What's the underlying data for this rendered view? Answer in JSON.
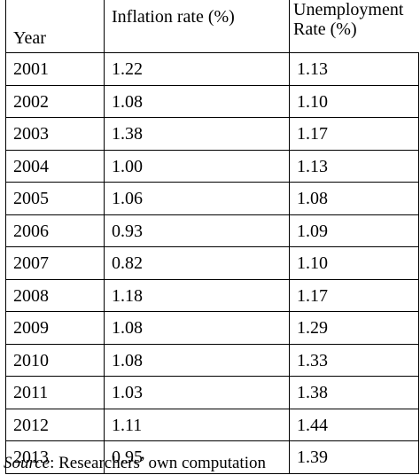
{
  "table": {
    "headers": {
      "year": "Year",
      "inflation": "Inflation rate (%)",
      "unemployment_line1": "Unemployment",
      "unemployment_line2": "Rate (%)"
    },
    "rows": [
      {
        "year": "2001",
        "inflation": "1.22",
        "unemployment": "1.13"
      },
      {
        "year": "2002",
        "inflation": "1.08",
        "unemployment": "1.10"
      },
      {
        "year": "2003",
        "inflation": "1.38",
        "unemployment": "1.17"
      },
      {
        "year": "2004",
        "inflation": "1.00",
        "unemployment": "1.13"
      },
      {
        "year": "2005",
        "inflation": "1.06",
        "unemployment": "1.08"
      },
      {
        "year": "2006",
        "inflation": "0.93",
        "unemployment": "1.09"
      },
      {
        "year": "2007",
        "inflation": "0.82",
        "unemployment": "1.10"
      },
      {
        "year": "2008",
        "inflation": "1.18",
        "unemployment": "1.17"
      },
      {
        "year": "2009",
        "inflation": "1.08",
        "unemployment": "1.29"
      },
      {
        "year": "2010",
        "inflation": "1.08",
        "unemployment": "1.33"
      },
      {
        "year": "2011",
        "inflation": "1.03",
        "unemployment": "1.38"
      },
      {
        "year": "2012",
        "inflation": "1.11",
        "unemployment": "1.44"
      },
      {
        "year": "2013",
        "inflation": "0.95",
        "unemployment": "1.39"
      }
    ]
  },
  "source": {
    "label": "Source",
    "text": ": Researchers’ own computation"
  }
}
